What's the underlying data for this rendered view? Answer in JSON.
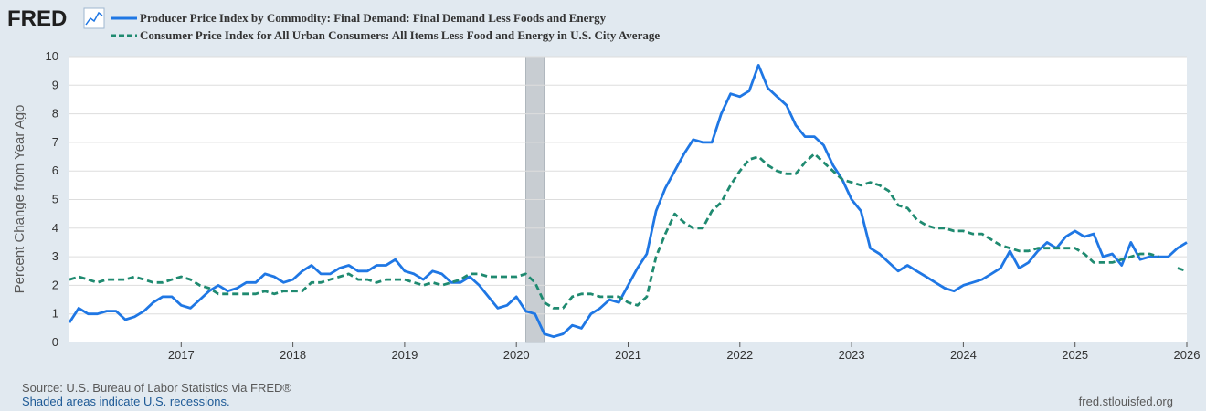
{
  "brand": {
    "name": "FRED",
    "icon": "line-chart-icon"
  },
  "colors": {
    "ppi": "#1f77e4",
    "cpi": "#1f8a70",
    "background": "#e1e9f0",
    "plot": "#ffffff",
    "recession": "#c8cdd2"
  },
  "footer": {
    "source": "Source: U.S. Bureau of Labor Statistics via FRED®",
    "shaded": "Shaded areas indicate U.S. recessions.",
    "url": "fred.stlouisfed.org"
  },
  "chart_data": {
    "type": "line",
    "title": "",
    "xlabel": "",
    "ylabel": "Percent Change from Year Ago",
    "xlim": [
      2016,
      2026
    ],
    "ylim": [
      0,
      10
    ],
    "grid": true,
    "x_ticks": [
      "2017",
      "2018",
      "2019",
      "2020",
      "2021",
      "2022",
      "2023",
      "2024",
      "2025",
      "2026"
    ],
    "y_ticks": [
      "0",
      "1",
      "2",
      "3",
      "4",
      "5",
      "6",
      "7",
      "8",
      "9",
      "10"
    ],
    "recessions": [
      [
        2020.083,
        2020.25
      ]
    ],
    "legend": {
      "placement": "top-left"
    },
    "series": [
      {
        "name": "Producer Price Index by Commodity: Final Demand: Final Demand Less Foods and Energy",
        "style": "solid",
        "x": [
          2016.0,
          2016.083,
          2016.167,
          2016.25,
          2016.333,
          2016.417,
          2016.5,
          2016.583,
          2016.667,
          2016.75,
          2016.833,
          2016.917,
          2017.0,
          2017.083,
          2017.167,
          2017.25,
          2017.333,
          2017.417,
          2017.5,
          2017.583,
          2017.667,
          2017.75,
          2017.833,
          2017.917,
          2018.0,
          2018.083,
          2018.167,
          2018.25,
          2018.333,
          2018.417,
          2018.5,
          2018.583,
          2018.667,
          2018.75,
          2018.833,
          2018.917,
          2019.0,
          2019.083,
          2019.167,
          2019.25,
          2019.333,
          2019.417,
          2019.5,
          2019.583,
          2019.667,
          2019.75,
          2019.833,
          2019.917,
          2020.0,
          2020.083,
          2020.167,
          2020.25,
          2020.333,
          2020.417,
          2020.5,
          2020.583,
          2020.667,
          2020.75,
          2020.833,
          2020.917,
          2021.0,
          2021.083,
          2021.167,
          2021.25,
          2021.333,
          2021.417,
          2021.5,
          2021.583,
          2021.667,
          2021.75,
          2021.833,
          2021.917,
          2022.0,
          2022.083,
          2022.167,
          2022.25,
          2022.333,
          2022.417,
          2022.5,
          2022.583,
          2022.667,
          2022.75,
          2022.833,
          2022.917,
          2023.0,
          2023.083,
          2023.167,
          2023.25,
          2023.333,
          2023.417,
          2023.5,
          2023.583,
          2023.667,
          2023.75,
          2023.833,
          2023.917,
          2024.0,
          2024.083,
          2024.167,
          2024.25,
          2024.333,
          2024.417,
          2024.5,
          2024.583,
          2024.667,
          2024.75,
          2024.833,
          2024.917,
          2025.0,
          2025.083,
          2025.167,
          2025.25,
          2025.333,
          2025.417,
          2025.5,
          2025.583,
          2025.667,
          2025.75,
          2025.833,
          2025.917,
          2026.0
        ],
        "values": [
          0.7,
          1.2,
          1.0,
          1.0,
          1.1,
          1.1,
          0.8,
          0.9,
          1.1,
          1.4,
          1.6,
          1.6,
          1.3,
          1.2,
          1.5,
          1.8,
          2.0,
          1.8,
          1.9,
          2.1,
          2.1,
          2.4,
          2.3,
          2.1,
          2.2,
          2.5,
          2.7,
          2.4,
          2.4,
          2.6,
          2.7,
          2.5,
          2.5,
          2.7,
          2.7,
          2.9,
          2.5,
          2.4,
          2.2,
          2.5,
          2.4,
          2.1,
          2.1,
          2.3,
          2.0,
          1.6,
          1.2,
          1.3,
          1.6,
          1.1,
          1.0,
          0.3,
          0.2,
          0.3,
          0.6,
          0.5,
          1.0,
          1.2,
          1.5,
          1.4,
          2.0,
          2.6,
          3.1,
          4.6,
          5.4,
          6.0,
          6.6,
          7.1,
          7.0,
          7.0,
          8.0,
          8.7,
          8.6,
          8.8,
          9.7,
          8.9,
          8.6,
          8.3,
          7.6,
          7.2,
          7.2,
          6.9,
          6.2,
          5.7,
          5.0,
          4.6,
          3.3,
          3.1,
          2.8,
          2.5,
          2.7,
          2.5,
          2.3,
          2.1,
          1.9,
          1.8,
          2.0,
          2.1,
          2.2,
          2.4,
          2.6,
          3.2,
          2.6,
          2.8,
          3.2,
          3.5,
          3.3,
          3.7,
          3.9,
          3.7,
          3.8,
          3.0,
          3.1,
          2.7,
          3.5,
          2.9,
          3.0,
          3.0,
          3.0,
          3.3,
          3.5
        ]
      },
      {
        "name": "Consumer Price Index for All Urban Consumers: All Items Less Food and Energy in U.S. City Average",
        "style": "dashed",
        "x": [
          2016.0,
          2016.083,
          2016.167,
          2016.25,
          2016.333,
          2016.417,
          2016.5,
          2016.583,
          2016.667,
          2016.75,
          2016.833,
          2016.917,
          2017.0,
          2017.083,
          2017.167,
          2017.25,
          2017.333,
          2017.417,
          2017.5,
          2017.583,
          2017.667,
          2017.75,
          2017.833,
          2017.917,
          2018.0,
          2018.083,
          2018.167,
          2018.25,
          2018.333,
          2018.417,
          2018.5,
          2018.583,
          2018.667,
          2018.75,
          2018.833,
          2018.917,
          2019.0,
          2019.083,
          2019.167,
          2019.25,
          2019.333,
          2019.417,
          2019.5,
          2019.583,
          2019.667,
          2019.75,
          2019.833,
          2019.917,
          2020.0,
          2020.083,
          2020.167,
          2020.25,
          2020.333,
          2020.417,
          2020.5,
          2020.583,
          2020.667,
          2020.75,
          2020.833,
          2020.917,
          2021.0,
          2021.083,
          2021.167,
          2021.25,
          2021.333,
          2021.417,
          2021.5,
          2021.583,
          2021.667,
          2021.75,
          2021.833,
          2021.917,
          2022.0,
          2022.083,
          2022.167,
          2022.25,
          2022.333,
          2022.417,
          2022.5,
          2022.583,
          2022.667,
          2022.75,
          2022.833,
          2022.917,
          2023.0,
          2023.083,
          2023.167,
          2023.25,
          2023.333,
          2023.417,
          2023.5,
          2023.583,
          2023.667,
          2023.75,
          2023.833,
          2023.917,
          2024.0,
          2024.083,
          2024.167,
          2024.25,
          2024.333,
          2024.417,
          2024.5,
          2024.583,
          2024.667,
          2024.75,
          2024.833,
          2024.917,
          2025.0,
          2025.083,
          2025.167,
          2025.25,
          2025.333,
          2025.417,
          2025.5,
          2025.583,
          2025.667,
          2025.75,
          2025.833,
          2025.917,
          2026.0
        ],
        "values": [
          2.2,
          2.3,
          2.2,
          2.1,
          2.2,
          2.2,
          2.2,
          2.3,
          2.2,
          2.1,
          2.1,
          2.2,
          2.3,
          2.2,
          2.0,
          1.9,
          1.7,
          1.7,
          1.7,
          1.7,
          1.7,
          1.8,
          1.7,
          1.8,
          1.8,
          1.8,
          2.1,
          2.1,
          2.2,
          2.3,
          2.4,
          2.2,
          2.2,
          2.1,
          2.2,
          2.2,
          2.2,
          2.1,
          2.0,
          2.1,
          2.0,
          2.1,
          2.2,
          2.4,
          2.4,
          2.3,
          2.3,
          2.3,
          2.3,
          2.4,
          2.1,
          1.4,
          1.2,
          1.2,
          1.6,
          1.7,
          1.7,
          1.6,
          1.6,
          1.6,
          1.4,
          1.3,
          1.6,
          3.0,
          3.8,
          4.5,
          4.2,
          4.0,
          4.0,
          4.6,
          4.9,
          5.5,
          6.0,
          6.4,
          6.5,
          6.2,
          6.0,
          5.9,
          5.9,
          6.3,
          6.6,
          6.3,
          6.0,
          5.7,
          5.6,
          5.5,
          5.6,
          5.5,
          5.3,
          4.8,
          4.7,
          4.3,
          4.1,
          4.0,
          4.0,
          3.9,
          3.9,
          3.8,
          3.8,
          3.6,
          3.4,
          3.3,
          3.2,
          3.2,
          3.3,
          3.3,
          3.3,
          3.3,
          3.3,
          3.1,
          2.8,
          2.8,
          2.8,
          2.9,
          3.0,
          3.1,
          3.1,
          3.0,
          null,
          2.6,
          2.5
        ]
      }
    ]
  }
}
